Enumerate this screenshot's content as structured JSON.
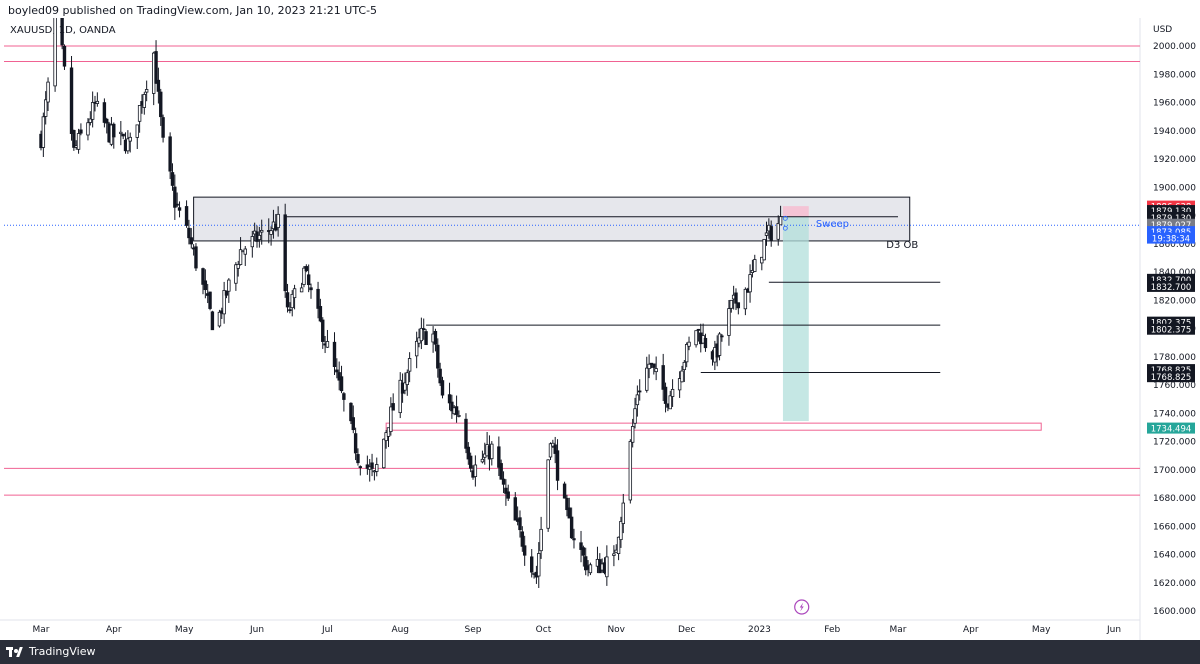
{
  "header": {
    "publisher_line": "boyled09 published on TradingView.com, Jan 10, 2023 21:21 UTC-5",
    "symbol_line": "XAUUSD, 1D, OANDA"
  },
  "footer": {
    "brand": "TradingView"
  },
  "colors": {
    "bull": "#131722",
    "bear": "#131722",
    "level_pink": "#f06292",
    "ob_fill": "#d1d4dc",
    "sweep_text": "#2962ff",
    "target_fill": "#b2dfdb",
    "stop_fill": "#f8bbd0",
    "current_price_line": "#2962ff"
  },
  "chart_data": {
    "type": "candlestick",
    "symbol": "XAUUSD",
    "timeframe": "1D",
    "currency_label": "USD",
    "ylim": [
      1595,
      2025
    ],
    "y_ticks": [
      1600,
      1620,
      1640,
      1660,
      1680,
      1700,
      1720,
      1740,
      1760,
      1780,
      1800,
      1820,
      1840,
      1860,
      1880,
      1900,
      1920,
      1940,
      1960,
      1980,
      2000
    ],
    "y_tick_format": 3,
    "x_months": [
      "Mar",
      "Apr",
      "May",
      "Jun",
      "Jul",
      "Aug",
      "Sep",
      "Oct",
      "Nov",
      "Dec",
      "2023",
      "Feb",
      "Mar",
      "Apr",
      "May",
      "Jun"
    ],
    "close_path": [
      {
        "date": "2022-03-01",
        "close": 1935
      },
      {
        "date": "2022-03-04",
        "close": 1970
      },
      {
        "date": "2022-03-08",
        "close": 2050
      },
      {
        "date": "2022-03-10",
        "close": 1995
      },
      {
        "date": "2022-03-15",
        "close": 1925
      },
      {
        "date": "2022-03-24",
        "close": 1958
      },
      {
        "date": "2022-03-30",
        "close": 1938
      },
      {
        "date": "2022-04-08",
        "close": 1930
      },
      {
        "date": "2022-04-18",
        "close": 1995
      },
      {
        "date": "2022-04-22",
        "close": 1930
      },
      {
        "date": "2022-04-27",
        "close": 1890
      },
      {
        "date": "2022-05-03",
        "close": 1865
      },
      {
        "date": "2022-05-13",
        "close": 1805
      },
      {
        "date": "2022-05-16",
        "close": 1810
      },
      {
        "date": "2022-05-25",
        "close": 1855
      },
      {
        "date": "2022-06-10",
        "close": 1875
      },
      {
        "date": "2022-06-14",
        "close": 1810
      },
      {
        "date": "2022-06-21",
        "close": 1840
      },
      {
        "date": "2022-07-05",
        "close": 1765
      },
      {
        "date": "2022-07-14",
        "close": 1710
      },
      {
        "date": "2022-07-21",
        "close": 1695
      },
      {
        "date": "2022-07-27",
        "close": 1735
      },
      {
        "date": "2022-08-10",
        "close": 1795
      },
      {
        "date": "2022-08-15",
        "close": 1795
      },
      {
        "date": "2022-08-19",
        "close": 1750
      },
      {
        "date": "2022-08-26",
        "close": 1740
      },
      {
        "date": "2022-09-01",
        "close": 1700
      },
      {
        "date": "2022-09-09",
        "close": 1715
      },
      {
        "date": "2022-09-16",
        "close": 1675
      },
      {
        "date": "2022-09-28",
        "close": 1625
      },
      {
        "date": "2022-10-04",
        "close": 1725
      },
      {
        "date": "2022-10-11",
        "close": 1665
      },
      {
        "date": "2022-10-20",
        "close": 1630
      },
      {
        "date": "2022-10-31",
        "close": 1635
      },
      {
        "date": "2022-11-04",
        "close": 1680
      },
      {
        "date": "2022-11-10",
        "close": 1755
      },
      {
        "date": "2022-11-15",
        "close": 1775
      },
      {
        "date": "2022-11-23",
        "close": 1750
      },
      {
        "date": "2022-12-05",
        "close": 1800
      },
      {
        "date": "2022-12-13",
        "close": 1780
      },
      {
        "date": "2022-12-20",
        "close": 1815
      },
      {
        "date": "2022-12-27",
        "close": 1830
      },
      {
        "date": "2023-01-04",
        "close": 1865
      },
      {
        "date": "2023-01-10",
        "close": 1876
      }
    ],
    "horizontal_levels": [
      {
        "price": 2000,
        "style": "pink-line"
      },
      {
        "price": 1989,
        "style": "pink-line"
      },
      {
        "price": 1701,
        "style": "pink-line"
      },
      {
        "price": 1682,
        "style": "pink-line"
      }
    ],
    "rays": [
      {
        "price": 1879.13,
        "from": "2022-06-13",
        "to": "2023-03-01"
      },
      {
        "price": 1832.7,
        "from": "2023-01-05",
        "to": "2023-03-19"
      },
      {
        "price": 1802.375,
        "from": "2022-08-12",
        "to": "2023-03-19"
      },
      {
        "price": 1768.825,
        "from": "2022-12-07",
        "to": "2023-03-19"
      }
    ],
    "zones": [
      {
        "label": "D3 OB",
        "from": "2022-05-05",
        "to": "2023-03-06",
        "top": 1893,
        "bottom": 1862,
        "fill": "#d1d4dc"
      },
      {
        "label": "",
        "from": "2022-07-26",
        "to": "2023-05-01",
        "top": 1733,
        "bottom": 1728,
        "fill": "none",
        "stroke": "#f06292"
      }
    ],
    "position_tool": {
      "from": "2023-01-11",
      "to": "2023-01-22",
      "entry": 1879.027,
      "stop": 1886.638,
      "target": 1734.494
    },
    "annotations": [
      {
        "text": "Sweep",
        "date": "2023-01-25",
        "price": 1874
      },
      {
        "text": "D3 OB",
        "date": "2023-02-24",
        "price": 1859
      }
    ],
    "price_labels": [
      {
        "text": "1886.638",
        "price": 1886.638,
        "bg": "#f23645",
        "fg": "#ffffff"
      },
      {
        "text": "1879.130",
        "price": 1883.5,
        "bg": "#131722",
        "fg": "#ffffff"
      },
      {
        "text": "1879.130",
        "price": 1878.6,
        "bg": "#131722",
        "fg": "#ffffff"
      },
      {
        "text": "1879.027",
        "price": 1873.8,
        "bg": "#787b86",
        "fg": "#ffffff"
      },
      {
        "text": "1873.085",
        "price": 1868.6,
        "bg": "#2962ff",
        "fg": "#ffffff"
      },
      {
        "text": "19:38:34",
        "price": 1864.0,
        "bg": "#2962ff",
        "fg": "#ffffff"
      },
      {
        "text": "1832.700",
        "price": 1834.8,
        "bg": "#131722",
        "fg": "#ffffff"
      },
      {
        "text": "1832.700",
        "price": 1829.8,
        "bg": "#131722",
        "fg": "#ffffff"
      },
      {
        "text": "1802.375",
        "price": 1804.5,
        "bg": "#131722",
        "fg": "#ffffff"
      },
      {
        "text": "1802.375",
        "price": 1799.5,
        "bg": "#131722",
        "fg": "#ffffff"
      },
      {
        "text": "1768.825",
        "price": 1770.9,
        "bg": "#131722",
        "fg": "#ffffff"
      },
      {
        "text": "1768.825",
        "price": 1765.9,
        "bg": "#131722",
        "fg": "#ffffff"
      },
      {
        "text": "1734.494",
        "price": 1729.5,
        "bg": "#26a69a",
        "fg": "#ffffff"
      }
    ],
    "current_price": 1873.085
  }
}
